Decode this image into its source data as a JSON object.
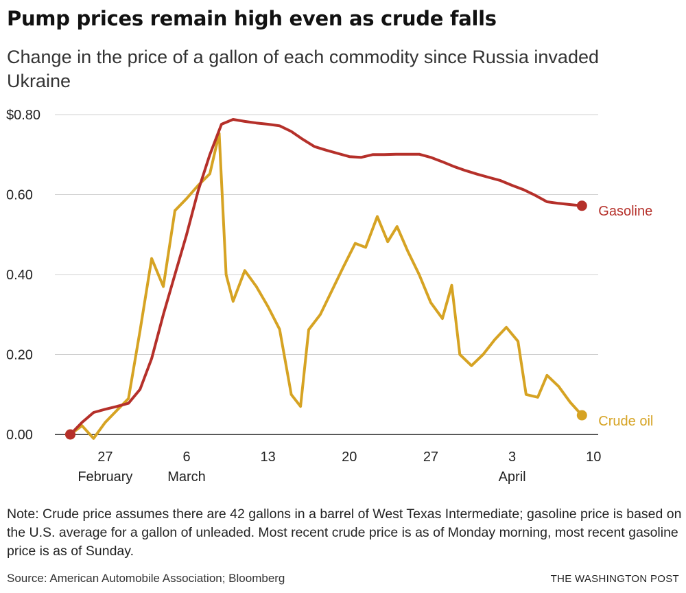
{
  "chart_data": {
    "type": "line",
    "title": "Pump prices remain high even as crude falls",
    "subtitle": "Change in the price of a gallon of each commodity since Russia invaded Ukraine",
    "xlabel": "",
    "ylabel": "",
    "ylim": [
      0,
      0.8
    ],
    "xlim": [
      0,
      47
    ],
    "grid": true,
    "y_ticks": [
      {
        "value": 0.8,
        "label": "$0.80"
      },
      {
        "value": 0.6,
        "label": "0.60"
      },
      {
        "value": 0.4,
        "label": "0.40"
      },
      {
        "value": 0.2,
        "label": "0.20"
      },
      {
        "value": 0.0,
        "label": "0.00"
      }
    ],
    "x_ticks": [
      {
        "day": 3,
        "label": "27",
        "month": "February"
      },
      {
        "day": 10,
        "label": "6",
        "month": "March"
      },
      {
        "day": 17,
        "label": "13",
        "month": ""
      },
      {
        "day": 24,
        "label": "20",
        "month": ""
      },
      {
        "day": 31,
        "label": "27",
        "month": ""
      },
      {
        "day": 38,
        "label": "3",
        "month": "April"
      },
      {
        "day": 45,
        "label": "10",
        "month": ""
      }
    ],
    "series": [
      {
        "name": "Gasoline",
        "color": "#b5302a",
        "points": [
          [
            0,
            0
          ],
          [
            1,
            0.03
          ],
          [
            2,
            0.055
          ],
          [
            3,
            0.063
          ],
          [
            4,
            0.07
          ],
          [
            5,
            0.078
          ],
          [
            6,
            0.113
          ],
          [
            7,
            0.19
          ],
          [
            8,
            0.3
          ],
          [
            9,
            0.4
          ],
          [
            10,
            0.5
          ],
          [
            11,
            0.61
          ],
          [
            12,
            0.7
          ],
          [
            13,
            0.776
          ],
          [
            14,
            0.788
          ],
          [
            15,
            0.783
          ],
          [
            16,
            0.779
          ],
          [
            17,
            0.776
          ],
          [
            18,
            0.772
          ],
          [
            19,
            0.758
          ],
          [
            20,
            0.738
          ],
          [
            21,
            0.72
          ],
          [
            22,
            0.711
          ],
          [
            23,
            0.703
          ],
          [
            24,
            0.695
          ],
          [
            25,
            0.693
          ],
          [
            26,
            0.7
          ],
          [
            27,
            0.7
          ],
          [
            28,
            0.701
          ],
          [
            29,
            0.701
          ],
          [
            30,
            0.701
          ],
          [
            31,
            0.693
          ],
          [
            32,
            0.682
          ],
          [
            33,
            0.67
          ],
          [
            34,
            0.66
          ],
          [
            35,
            0.651
          ],
          [
            36,
            0.643
          ],
          [
            37,
            0.635
          ],
          [
            38,
            0.623
          ],
          [
            39,
            0.612
          ],
          [
            40,
            0.598
          ],
          [
            41,
            0.582
          ],
          [
            42,
            0.578
          ],
          [
            43,
            0.575
          ],
          [
            44,
            0.572
          ]
        ]
      },
      {
        "name": "Crude oil",
        "color": "#d6a323",
        "points": [
          [
            0,
            0
          ],
          [
            1,
            0.022
          ],
          [
            2,
            -0.01
          ],
          [
            3,
            0.03
          ],
          [
            4,
            0.06
          ],
          [
            5,
            0.09
          ],
          [
            6,
            0.26
          ],
          [
            7,
            0.44
          ],
          [
            8,
            0.37
          ],
          [
            9,
            0.56
          ],
          [
            10,
            0.59
          ],
          [
            11,
            0.623
          ],
          [
            12,
            0.652
          ],
          [
            12.8,
            0.753
          ],
          [
            13.4,
            0.4
          ],
          [
            14,
            0.333
          ],
          [
            15,
            0.41
          ],
          [
            16,
            0.37
          ],
          [
            17,
            0.32
          ],
          [
            18,
            0.263
          ],
          [
            19,
            0.1
          ],
          [
            19.8,
            0.07
          ],
          [
            20.5,
            0.262
          ],
          [
            21.5,
            0.3
          ],
          [
            22.5,
            0.36
          ],
          [
            23.5,
            0.42
          ],
          [
            24.5,
            0.478
          ],
          [
            25.4,
            0.468
          ],
          [
            26.4,
            0.545
          ],
          [
            27.3,
            0.482
          ],
          [
            28.1,
            0.52
          ],
          [
            29,
            0.46
          ],
          [
            30,
            0.4
          ],
          [
            31,
            0.33
          ],
          [
            32,
            0.29
          ],
          [
            32.8,
            0.373
          ],
          [
            33.5,
            0.2
          ],
          [
            34.5,
            0.172
          ],
          [
            35.5,
            0.2
          ],
          [
            36.5,
            0.237
          ],
          [
            37.5,
            0.268
          ],
          [
            38.5,
            0.233
          ],
          [
            39.2,
            0.1
          ],
          [
            40.2,
            0.093
          ],
          [
            41,
            0.148
          ],
          [
            42,
            0.12
          ],
          [
            43,
            0.08
          ],
          [
            44,
            0.048
          ]
        ]
      }
    ],
    "series_labels": {
      "gasoline": "Gasoline",
      "crude": "Crude oil"
    }
  },
  "footer": {
    "note": "Note: Crude price assumes there are 42 gallons in a barrel of West Texas Intermediate; gasoline price is based on the U.S. average for a gallon of unleaded. Most recent crude price is as of Monday morning, most recent gasoline price is as of Sunday.",
    "source": "Source: American Automobile Association; Bloomberg",
    "credit": "THE WASHINGTON POST"
  }
}
